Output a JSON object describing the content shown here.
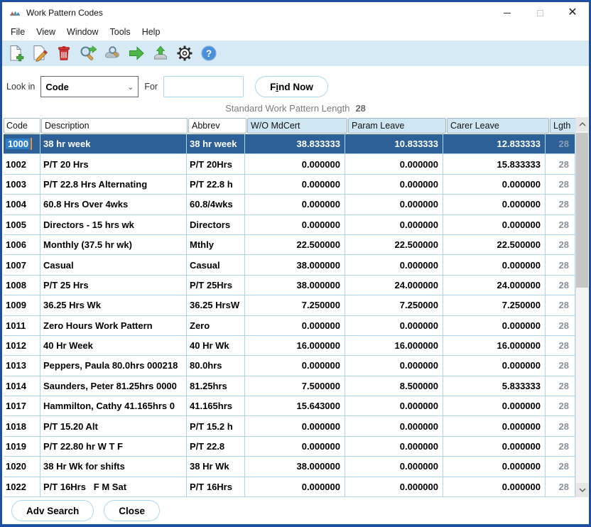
{
  "window": {
    "title": "Work Pattern Codes",
    "controls": [
      "minimize",
      "maximize",
      "close"
    ]
  },
  "menu": {
    "items": [
      "File",
      "View",
      "Window",
      "Tools",
      "Help"
    ]
  },
  "toolbar": {
    "icons": [
      "new-record",
      "edit-record",
      "delete-record",
      "find-next",
      "advanced-find",
      "go-next",
      "export",
      "settings",
      "help"
    ]
  },
  "search": {
    "look_in_label": "Look in",
    "look_in_value": "Code",
    "for_label": "For",
    "for_value": "",
    "find_button": {
      "pre": "F",
      "accesskey": "i",
      "post": "nd Now"
    }
  },
  "info": {
    "label": "Standard Work Pattern Length",
    "value": "28"
  },
  "table": {
    "columns": [
      "Code",
      "Description",
      "Abbrev",
      "W/O MdCert",
      "Param Leave",
      "Carer Leave",
      "Lgth"
    ],
    "rows": [
      {
        "code": "1000",
        "description": "38 hr week",
        "abbrev": "38 hr week",
        "wo_mdcert": "38.833333",
        "param_leave": "10.833333",
        "carer_leave": "12.833333",
        "lgth": "28",
        "selected": true
      },
      {
        "code": "1002",
        "description": "P/T 20 Hrs",
        "abbrev": "P/T 20Hrs",
        "wo_mdcert": "0.000000",
        "param_leave": "0.000000",
        "carer_leave": "15.833333",
        "lgth": "28"
      },
      {
        "code": "1003",
        "description": "P/T 22.8 Hrs Alternating",
        "abbrev": "P/T 22.8 h",
        "wo_mdcert": "0.000000",
        "param_leave": "0.000000",
        "carer_leave": "0.000000",
        "lgth": "28"
      },
      {
        "code": "1004",
        "description": "60.8 Hrs Over 4wks",
        "abbrev": "60.8/4wks",
        "wo_mdcert": "0.000000",
        "param_leave": "0.000000",
        "carer_leave": "0.000000",
        "lgth": "28"
      },
      {
        "code": "1005",
        "description": "Directors - 15 hrs wk",
        "abbrev": "Directors",
        "wo_mdcert": "0.000000",
        "param_leave": "0.000000",
        "carer_leave": "0.000000",
        "lgth": "28"
      },
      {
        "code": "1006",
        "description": "Monthly (37.5 hr wk)",
        "abbrev": "Mthly",
        "wo_mdcert": "22.500000",
        "param_leave": "22.500000",
        "carer_leave": "22.500000",
        "lgth": "28"
      },
      {
        "code": "1007",
        "description": "Casual",
        "abbrev": "Casual",
        "wo_mdcert": "38.000000",
        "param_leave": "0.000000",
        "carer_leave": "0.000000",
        "lgth": "28"
      },
      {
        "code": "1008",
        "description": "P/T 25 Hrs",
        "abbrev": "P/T 25Hrs",
        "wo_mdcert": "38.000000",
        "param_leave": "24.000000",
        "carer_leave": "24.000000",
        "lgth": "28"
      },
      {
        "code": "1009",
        "description": "36.25 Hrs Wk",
        "abbrev": "36.25 HrsW",
        "wo_mdcert": "7.250000",
        "param_leave": "7.250000",
        "carer_leave": "7.250000",
        "lgth": "28"
      },
      {
        "code": "1011",
        "description": "Zero Hours Work Pattern",
        "abbrev": "Zero",
        "wo_mdcert": "0.000000",
        "param_leave": "0.000000",
        "carer_leave": "0.000000",
        "lgth": "28"
      },
      {
        "code": "1012",
        "description": "40 Hr Week",
        "abbrev": "40 Hr Wk",
        "wo_mdcert": "16.000000",
        "param_leave": "16.000000",
        "carer_leave": "16.000000",
        "lgth": "28"
      },
      {
        "code": "1013",
        "description": "Peppers, Paula 80.0hrs 000218",
        "abbrev": "80.0hrs",
        "wo_mdcert": "0.000000",
        "param_leave": "0.000000",
        "carer_leave": "0.000000",
        "lgth": "28"
      },
      {
        "code": "1014",
        "description": "Saunders, Peter 81.25hrs 0000",
        "abbrev": "81.25hrs",
        "wo_mdcert": "7.500000",
        "param_leave": "8.500000",
        "carer_leave": "5.833333",
        "lgth": "28"
      },
      {
        "code": "1017",
        "description": "Hammilton, Cathy 41.165hrs 0",
        "abbrev": "41.165hrs",
        "wo_mdcert": "15.643000",
        "param_leave": "0.000000",
        "carer_leave": "0.000000",
        "lgth": "28"
      },
      {
        "code": "1018",
        "description": "P/T 15.20 Alt",
        "abbrev": "P/T 15.2 h",
        "wo_mdcert": "0.000000",
        "param_leave": "0.000000",
        "carer_leave": "0.000000",
        "lgth": "28"
      },
      {
        "code": "1019",
        "description": "P/T 22.80 hr W T F",
        "abbrev": "P/T 22.8",
        "wo_mdcert": "0.000000",
        "param_leave": "0.000000",
        "carer_leave": "0.000000",
        "lgth": "28"
      },
      {
        "code": "1020",
        "description": "38 Hr Wk for shifts",
        "abbrev": "38 Hr Wk",
        "wo_mdcert": "38.000000",
        "param_leave": "0.000000",
        "carer_leave": "0.000000",
        "lgth": "28"
      },
      {
        "code": "1022",
        "description": "P/T 16Hrs   F M Sat",
        "abbrev": "P/T 16Hrs",
        "wo_mdcert": "0.000000",
        "param_leave": "0.000000",
        "carer_leave": "0.000000",
        "lgth": "28"
      }
    ]
  },
  "footer": {
    "adv_search_button": "Adv Search",
    "close_button": "Close"
  },
  "colors": {
    "window_border": "#1d4fa3",
    "toolbar_bg": "#d6eaf6",
    "header_cell_bg": "#cfe7f5",
    "grid_line": "#aad5ea",
    "selected_row_bg": "#2d6096",
    "selection_highlight": "#2e7fc6",
    "edit_caret": "#e8963c",
    "lgth_text": "#8a9199",
    "control_border": "#a8d8ef"
  }
}
